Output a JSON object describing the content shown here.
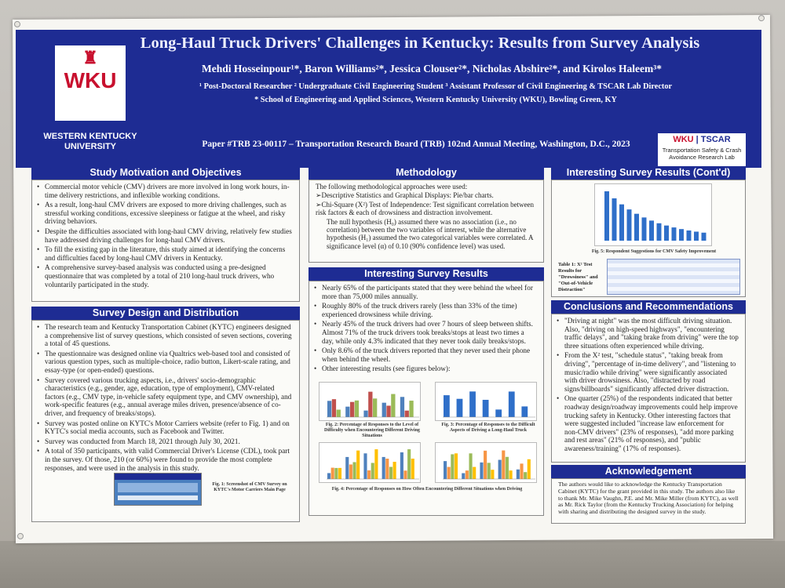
{
  "header": {
    "title": "Long-Haul Truck Drivers' Challenges in Kentucky: Results from Survey Analysis",
    "authors": "Mehdi Hosseinpour¹*, Baron Williams²*, Jessica Clouser²*, Nicholas Abshire²*, and Kirolos Haleem³*",
    "affil_line1": "¹ Post-Doctoral Researcher     ² Undergraduate Civil Engineering Student     ³ Assistant Professor of Civil Engineering & TSCAR Lab Director",
    "affil_line2": "* School of Engineering and Applied Sciences, Western Kentucky University (WKU), Bowling Green, KY",
    "paper": "Paper #TRB 23-00117 – Transportation Research Board (TRB) 102nd Annual Meeting, Washington, D.C., 2023",
    "wku_logo": "WKU",
    "wku_name_1": "WESTERN KENTUCKY",
    "wku_name_2": "UNIVERSITY",
    "tscar_wku": "WKU",
    "tscar_name": "TSCAR",
    "tscar_sub": "Transportation Safety & Crash Avoidance Research Lab"
  },
  "motivation": {
    "heading": "Study Motivation and Objectives",
    "items": [
      "Commercial motor vehicle (CMV) drivers are more involved in long work hours, in-time delivery restrictions, and inflexible working conditions.",
      "As a result, long-haul CMV drivers are exposed to more driving challenges, such as stressful working conditions, excessive sleepiness or fatigue at the wheel, and risky driving behaviors.",
      "Despite the difficulties associated with long-haul CMV driving, relatively few studies have addressed driving challenges for long-haul CMV drivers.",
      "To fill the existing gap in the literature, this study aimed at identifying the concerns and difficulties faced by long-haul CMV drivers in Kentucky.",
      "A comprehensive survey-based analysis was conducted using a pre-designed questionnaire that was completed by a total of 210 long-haul truck drivers, who voluntarily participated in the study."
    ]
  },
  "design": {
    "heading": "Survey Design and Distribution",
    "items": [
      "The research team and Kentucky Transportation Cabinet (KYTC) engineers designed a comprehensive list of survey questions, which consisted of seven sections, covering a total of 45 questions.",
      "The questionnaire was designed online via Qualtrics web-based tool and consisted of various question types, such as multiple-choice, radio button, Likert-scale rating, and essay-type (or open-ended) questions.",
      "Survey covered various trucking aspects, i.e., drivers' socio-demographic characteristics (e.g., gender, age, education, type of employment), CMV-related factors (e.g., CMV type, in-vehicle safety equipment type, and CMV ownership), and work-specific features (e.g., annual average miles driven, presence/absence of co-driver, and frequency of breaks/stops).",
      "Survey was posted online on KYTC's Motor Carriers website (refer to Fig. 1) and on KYTC's social media accounts, such as Facebook and Twitter.",
      "Survey was conducted from March 18, 2021 through July 30, 2021.",
      "A total of 350 participants, with valid Commercial Driver's License (CDL), took part in the survey. Of those, 210 (or 60%) were found to provide the most complete responses, and were used in the analysis in this study."
    ],
    "fig1_caption": "Fig. 1: Screenshot of CMV Survey on KYTC's Motor Carriers Main Page"
  },
  "methodology": {
    "heading": "Methodology",
    "intro": "The following methodological approaches were used:",
    "m1": "➢Descriptive Statistics and Graphical Displays: Pie/bar charts.",
    "m2": "➢Chi-Square (X²) Test of Independence: Test significant correlation between risk factors & each of drowsiness and distraction involvement.",
    "m3": "The null hypothesis (H₀) assumed there was no association (i.e., no correlation) between the two variables of interest, while the alternative hypothesis (H₁) assumed the two categorical variables were correlated. A significance level (α) of 0.10 (90% confidence level) was used."
  },
  "results": {
    "heading": "Interesting Survey Results",
    "items": [
      "Nearly 65% of the participants stated that they were behind the wheel for more than 75,000 miles annually.",
      "Roughly 80% of the truck drivers rarely (less than 33% of the time) experienced drowsiness while driving.",
      "Nearly 45% of the truck drivers had over 7 hours of sleep between shifts. Almost 71% of the truck drivers took breaks/stops at least two times a day, while only 4.3% indicated that they never took daily breaks/stops.",
      "Only 8.6% of the truck drivers reported that they never used their phone when behind the wheel.",
      "Other interesting results (see figures below):"
    ],
    "fig2_caption": "Fig. 2: Percentage of Responses to the Level of Difficulty when Encountering Different Driving Situations",
    "fig3_caption": "Fig. 3: Percentage of Responses to the Difficult Aspects of Driving a Long-Haul Truck",
    "fig4_caption": "Fig. 4: Percentage of Responses on How Often Encountering Different Situations when Driving"
  },
  "results2": {
    "heading": "Interesting Survey Results (Cont'd)",
    "fig5_caption": "Fig. 5: Respondent Suggestions for CMV Safety Improvement",
    "table_label": "Table 1: X² Test Results for \"Drowsiness\" and \"Out-of-Vehicle Distraction\""
  },
  "conclusions": {
    "heading": "Conclusions and Recommendations",
    "items": [
      "\"Driving at night\" was the most difficult driving situation. Also, \"driving on high-speed highways\", \"encountering traffic delays\", and \"taking brake from driving\" were the top three situations often experienced while driving.",
      "From the X² test, \"schedule status\", \"taking break from driving\", \"percentage of in-time delivery\", and \"listening to music/radio while driving\" were significantly associated with driver drowsiness. Also, \"distracted by road signs/billboards\" significantly affected driver distraction.",
      "One quarter (25%) of the respondents indicated that better roadway design/roadway improvements could help improve trucking safety in Kentucky. Other interesting factors that were suggested included \"increase law enforcement for non-CMV drivers\" (23% of responses), \"add more parking and rest areas\" (21% of responses), and \"public awareness/training\" (17% of responses)."
    ]
  },
  "acknowledgement": {
    "heading": "Acknowledgement",
    "text": "The authors would like to acknowledge the Kentucky Transportation Cabinet (KYTC) for the grant provided in this study. The authors also like to thank Mr. Mike Vaughn, P.E. and Mr. Mike Miller (from KYTC), as well as Mr. Rick Taylor (from the Kentucky Trucking Association) for helping with sharing and distributing the designed survey in the study."
  }
}
